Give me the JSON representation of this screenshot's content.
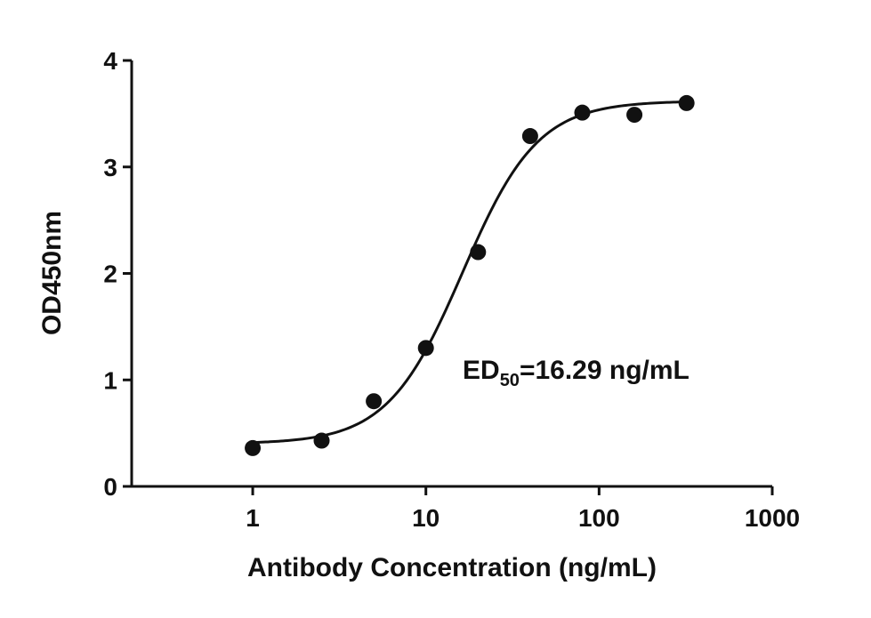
{
  "chart_data": {
    "type": "scatter",
    "xscale": "log",
    "xlim": [
      0.2,
      1000
    ],
    "ylim": [
      0,
      4
    ],
    "xticks": [
      1,
      10,
      100,
      1000
    ],
    "xtick_labels": [
      "1",
      "10",
      "100",
      "1000"
    ],
    "yticks": [
      0,
      1,
      2,
      3,
      4
    ],
    "ytick_labels": [
      "0",
      "1",
      "2",
      "3",
      "4"
    ],
    "xlabel": "Antibody Concentration (ng/mL)",
    "ylabel": "OD450nm",
    "grid": false,
    "legend": "none",
    "points": [
      {
        "x": 1,
        "y": 0.36
      },
      {
        "x": 2.5,
        "y": 0.43
      },
      {
        "x": 5,
        "y": 0.8
      },
      {
        "x": 10,
        "y": 1.3
      },
      {
        "x": 20,
        "y": 2.2
      },
      {
        "x": 40,
        "y": 3.29
      },
      {
        "x": 80,
        "y": 3.51
      },
      {
        "x": 160,
        "y": 3.49
      },
      {
        "x": 320,
        "y": 3.6
      }
    ],
    "fit": {
      "model": "4PL",
      "bottom": 0.4,
      "top": 3.62,
      "ed50": 16.29,
      "hill": 2.0,
      "x_range": [
        1,
        320
      ]
    },
    "annotation": {
      "prefix": "ED",
      "subscript": "50",
      "suffix": "=16.29 ng/mL"
    },
    "colors": {
      "marker": "#111111",
      "line": "#111111",
      "axis": "#111111"
    }
  }
}
